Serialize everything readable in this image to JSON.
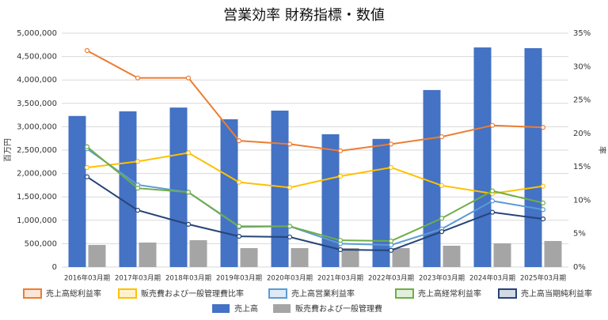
{
  "chart_data": {
    "type": "combo",
    "title": "営業効率 財務指標・数値",
    "y_label": "百万円",
    "y2_label": "率",
    "categories": [
      "2016年03月期",
      "2017年03月期",
      "2018年03月期",
      "2019年03月期",
      "2020年03月期",
      "2021年03月期",
      "2022年03月期",
      "2023年03月期",
      "2024年03月期",
      "2025年03月期"
    ],
    "ylim": [
      0,
      5000000
    ],
    "yticks": [
      {
        "value": 0,
        "label": "0"
      },
      {
        "value": 500000,
        "label": "500,000"
      },
      {
        "value": 1000000,
        "label": "1,000,000"
      },
      {
        "value": 1500000,
        "label": "1,500,000"
      },
      {
        "value": 2000000,
        "label": "2,000,000"
      },
      {
        "value": 2500000,
        "label": "2,500,000"
      },
      {
        "value": 3000000,
        "label": "3,000,000"
      },
      {
        "value": 3500000,
        "label": "3,500,000"
      },
      {
        "value": 4000000,
        "label": "4,000,000"
      },
      {
        "value": 4500000,
        "label": "4,500,000"
      },
      {
        "value": 5000000,
        "label": "5,000,000"
      }
    ],
    "y2lim": [
      0,
      35
    ],
    "y2ticks": [
      {
        "value": 0,
        "label": "0%"
      },
      {
        "value": 5,
        "label": "5%"
      },
      {
        "value": 10,
        "label": "10%"
      },
      {
        "value": 15,
        "label": "15%"
      },
      {
        "value": 20,
        "label": "20%"
      },
      {
        "value": 25,
        "label": "25%"
      },
      {
        "value": 30,
        "label": "30%"
      },
      {
        "value": 35,
        "label": "35%"
      }
    ],
    "grid": true,
    "series": [
      {
        "name": "売上高総利益率",
        "type": "line",
        "axis": "y2",
        "color": "#ed7d31",
        "values": [
          32.4,
          28.3,
          28.3,
          18.9,
          18.4,
          17.4,
          18.4,
          19.5,
          21.2,
          20.9
        ]
      },
      {
        "name": "販売費および一般管理費比率",
        "type": "line",
        "axis": "y2",
        "color": "#ffc000",
        "values": [
          14.9,
          15.8,
          17.1,
          12.7,
          11.9,
          13.6,
          14.9,
          12.2,
          11.0,
          12.1
        ]
      },
      {
        "name": "売上高営業利益率",
        "type": "line",
        "axis": "y2",
        "color": "#5b9bd5",
        "values": [
          17.7,
          12.3,
          11.2,
          6.0,
          6.1,
          3.5,
          3.3,
          5.7,
          9.9,
          8.6
        ]
      },
      {
        "name": "売上高経常利益率",
        "type": "line",
        "axis": "y2",
        "color": "#70ad47",
        "values": [
          18.0,
          11.8,
          11.2,
          6.1,
          6.1,
          4.0,
          3.9,
          7.3,
          11.4,
          9.6
        ]
      },
      {
        "name": "売上高当期純利益率",
        "type": "line",
        "axis": "y2",
        "color": "#264478",
        "values": [
          13.5,
          8.5,
          6.4,
          4.6,
          4.5,
          2.6,
          2.5,
          5.3,
          8.2,
          7.2
        ]
      },
      {
        "name": "売上高",
        "type": "bar",
        "axis": "y",
        "color": "#4472c4",
        "values": [
          3230000,
          3330000,
          3410000,
          3160000,
          3345000,
          2840000,
          2740000,
          3785000,
          4695000,
          4680000
        ]
      },
      {
        "name": "販売費および一般管理費",
        "type": "bar",
        "axis": "y",
        "color": "#a5a5a5",
        "values": [
          473000,
          524000,
          574000,
          405000,
          405000,
          405000,
          405000,
          456000,
          507000,
          557000
        ]
      }
    ]
  }
}
